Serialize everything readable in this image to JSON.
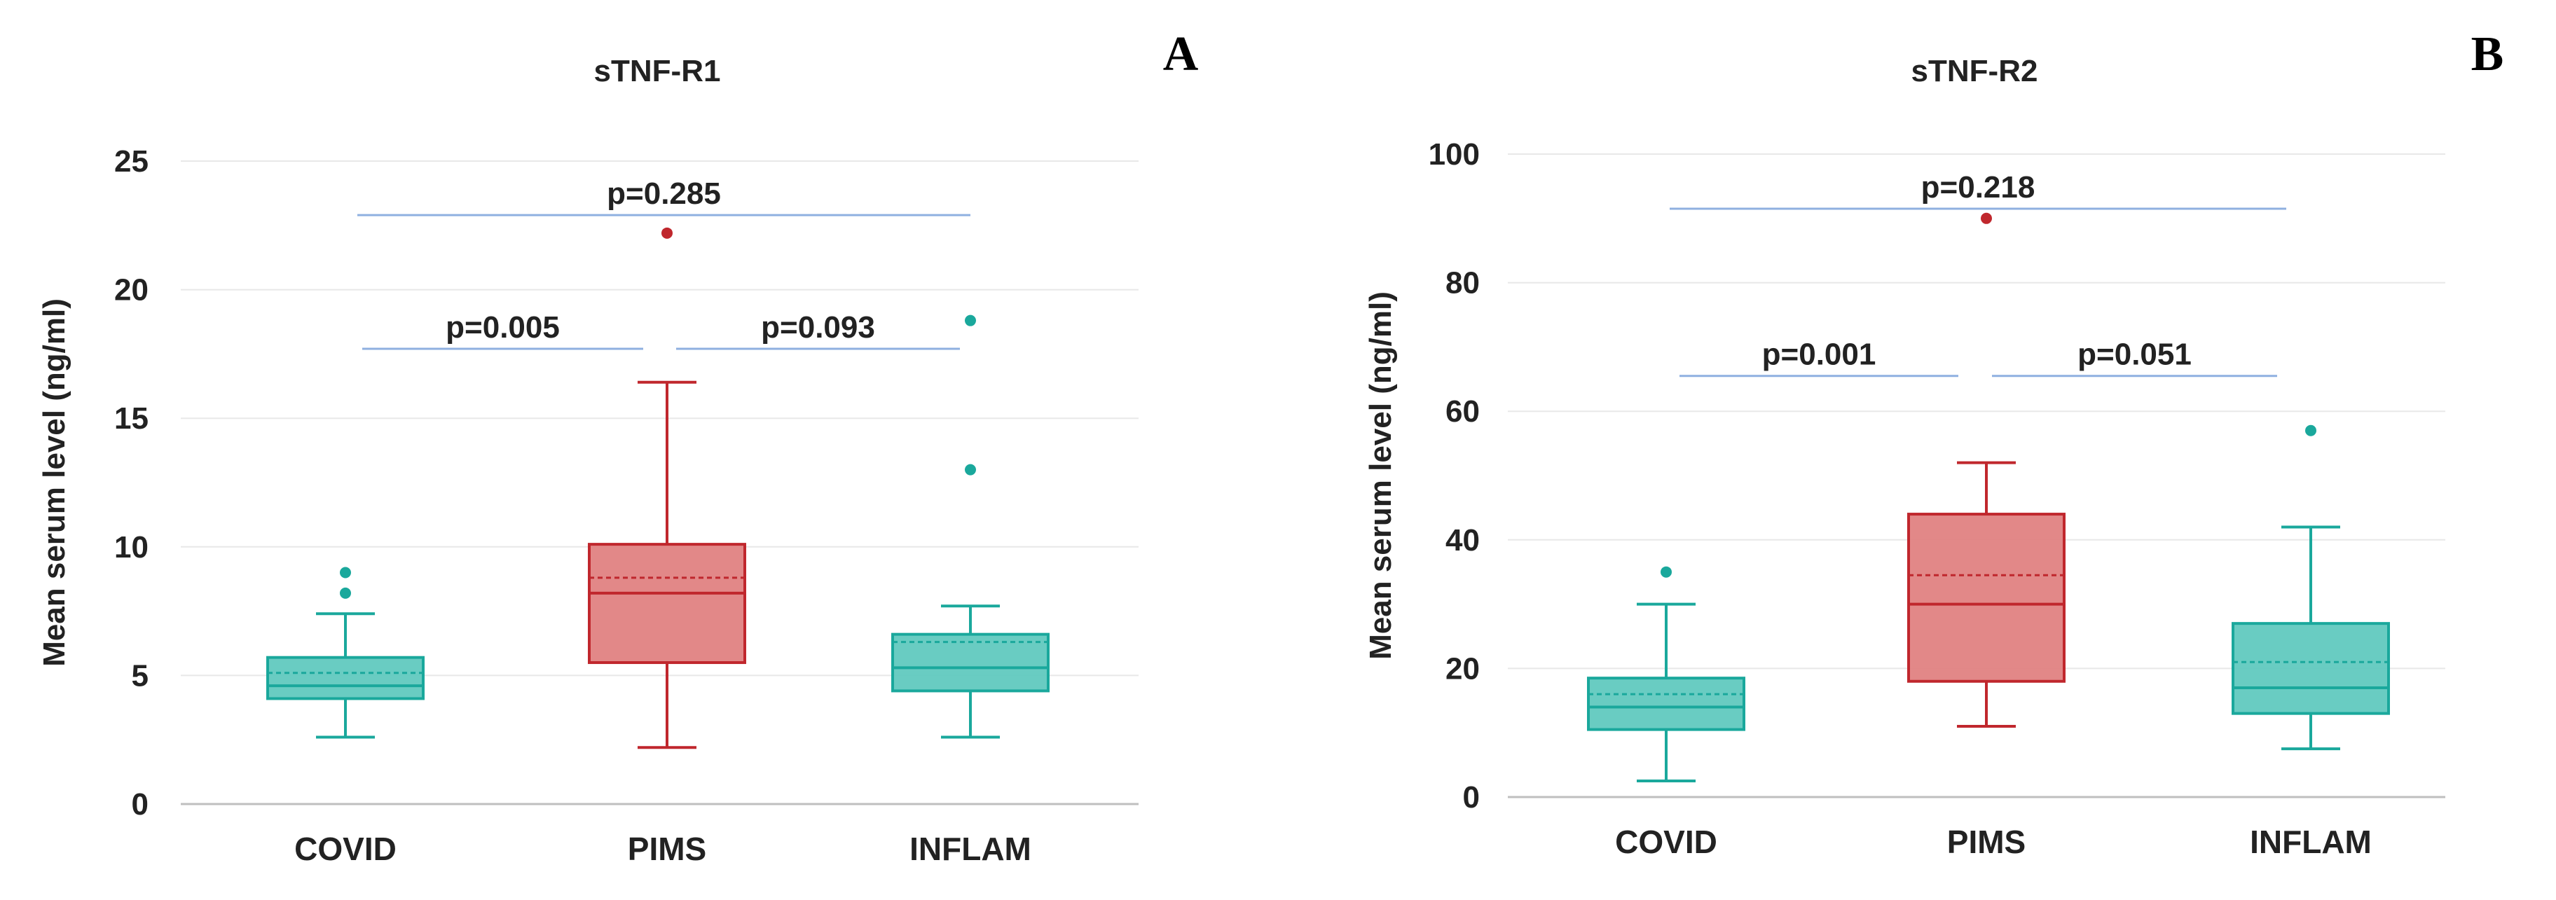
{
  "colors": {
    "covid_fill": "#61c9bf",
    "covid_stroke": "#1aa89c",
    "pims_fill": "#e08282",
    "pims_stroke": "#c0272d",
    "inflam_fill": "#61c9bf",
    "inflam_stroke": "#1aa89c",
    "bracket": "#8fb0e0",
    "grid": "#e8e8e8",
    "axis": "#bfbfbf"
  },
  "chart_data": [
    {
      "type": "boxplot",
      "panel_letter": "A",
      "title": "sTNF-R1",
      "xlabel": "",
      "ylabel": "Mean serum level (ng/ml)",
      "ylim": [
        0,
        25
      ],
      "yticks": [
        0,
        5,
        10,
        15,
        20,
        25
      ],
      "grid": true,
      "categories": [
        "COVID",
        "PIMS",
        "INFLAM"
      ],
      "boxes": [
        {
          "category": "COVID",
          "whisker_low": 2.6,
          "q1": 4.1,
          "median": 4.6,
          "q3": 5.7,
          "whisker_high": 7.4,
          "mean": 5.1,
          "outliers": [
            8.2,
            9.0
          ],
          "color_key": "covid"
        },
        {
          "category": "PIMS",
          "whisker_low": 2.2,
          "q1": 5.5,
          "median": 8.2,
          "q3": 10.1,
          "whisker_high": 16.4,
          "mean": 8.8,
          "outliers": [
            22.2
          ],
          "color_key": "pims"
        },
        {
          "category": "INFLAM",
          "whisker_low": 2.6,
          "q1": 4.4,
          "median": 5.3,
          "q3": 6.6,
          "whisker_high": 7.7,
          "mean": 6.3,
          "outliers": [
            13.0,
            18.8
          ],
          "color_key": "inflam"
        }
      ],
      "comparisons": [
        {
          "from": "COVID",
          "to": "INFLAM",
          "label": "p=0.285",
          "y": 22.9
        },
        {
          "from": "COVID",
          "to": "PIMS",
          "label": "p=0.005",
          "y": 17.7
        },
        {
          "from": "PIMS",
          "to": "INFLAM",
          "label": "p=0.093",
          "y": 17.7
        }
      ]
    },
    {
      "type": "boxplot",
      "panel_letter": "B",
      "title": "sTNF-R2",
      "xlabel": "",
      "ylabel": "Mean serum level (ng/ml)",
      "ylim": [
        0,
        100
      ],
      "yticks": [
        0,
        20,
        40,
        60,
        80,
        100
      ],
      "grid": true,
      "categories": [
        "COVID",
        "PIMS",
        "INFLAM"
      ],
      "boxes": [
        {
          "category": "COVID",
          "whisker_low": 2.5,
          "q1": 10.5,
          "median": 14.0,
          "q3": 18.5,
          "whisker_high": 30.0,
          "mean": 16.0,
          "outliers": [
            35.0
          ],
          "color_key": "covid"
        },
        {
          "category": "PIMS",
          "whisker_low": 11.0,
          "q1": 18.0,
          "median": 30.0,
          "q3": 44.0,
          "whisker_high": 52.0,
          "mean": 34.5,
          "outliers": [
            90.0
          ],
          "color_key": "pims"
        },
        {
          "category": "INFLAM",
          "whisker_low": 7.5,
          "q1": 13.0,
          "median": 17.0,
          "q3": 27.0,
          "whisker_high": 42.0,
          "mean": 21.0,
          "outliers": [
            57.0
          ],
          "color_key": "inflam"
        }
      ],
      "comparisons": [
        {
          "from": "COVID",
          "to": "INFLAM",
          "label": "p=0.218",
          "y": 91.5
        },
        {
          "from": "COVID",
          "to": "PIMS",
          "label": "p=0.001",
          "y": 65.5
        },
        {
          "from": "PIMS",
          "to": "INFLAM",
          "label": "p=0.051",
          "y": 65.5
        }
      ]
    }
  ]
}
